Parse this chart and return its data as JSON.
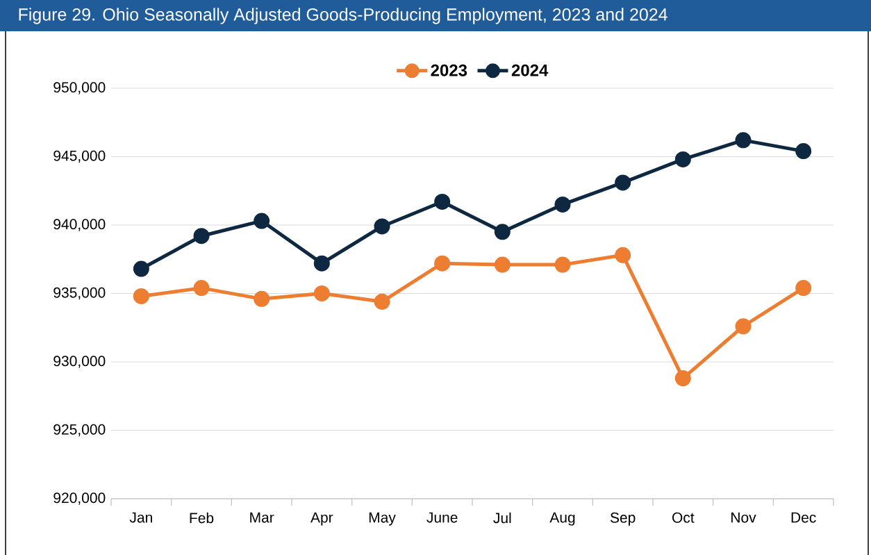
{
  "chart_data": {
    "type": "line",
    "title": "Figure 29. Ohio Seasonally Adjusted Goods-Producing Employment, 2023 and 2024",
    "categories": [
      "Jan",
      "Feb",
      "Mar",
      "Apr",
      "May",
      "June",
      "Jul",
      "Aug",
      "Sep",
      "Oct",
      "Nov",
      "Dec"
    ],
    "series": [
      {
        "name": "2023",
        "color": "#ed7d31",
        "values": [
          934800,
          935400,
          934600,
          935000,
          934400,
          937200,
          937100,
          937100,
          937800,
          928800,
          932600,
          935400
        ]
      },
      {
        "name": "2024",
        "color": "#0e2841",
        "values": [
          936800,
          939200,
          940300,
          937200,
          939900,
          941700,
          939500,
          941500,
          943100,
          944800,
          946200,
          945400
        ]
      }
    ],
    "ylim": [
      920000,
      950000
    ],
    "yticks": [
      {
        "value": 920000,
        "label": "920,000"
      },
      {
        "value": 925000,
        "label": "925,000"
      },
      {
        "value": 930000,
        "label": "930,000"
      },
      {
        "value": 935000,
        "label": "935,000"
      },
      {
        "value": 940000,
        "label": "940,000"
      },
      {
        "value": 945000,
        "label": "945,000"
      },
      {
        "value": 950000,
        "label": "950,000"
      }
    ],
    "grid": "y",
    "legend": "top",
    "marker": "circle",
    "line_style": "solid"
  }
}
